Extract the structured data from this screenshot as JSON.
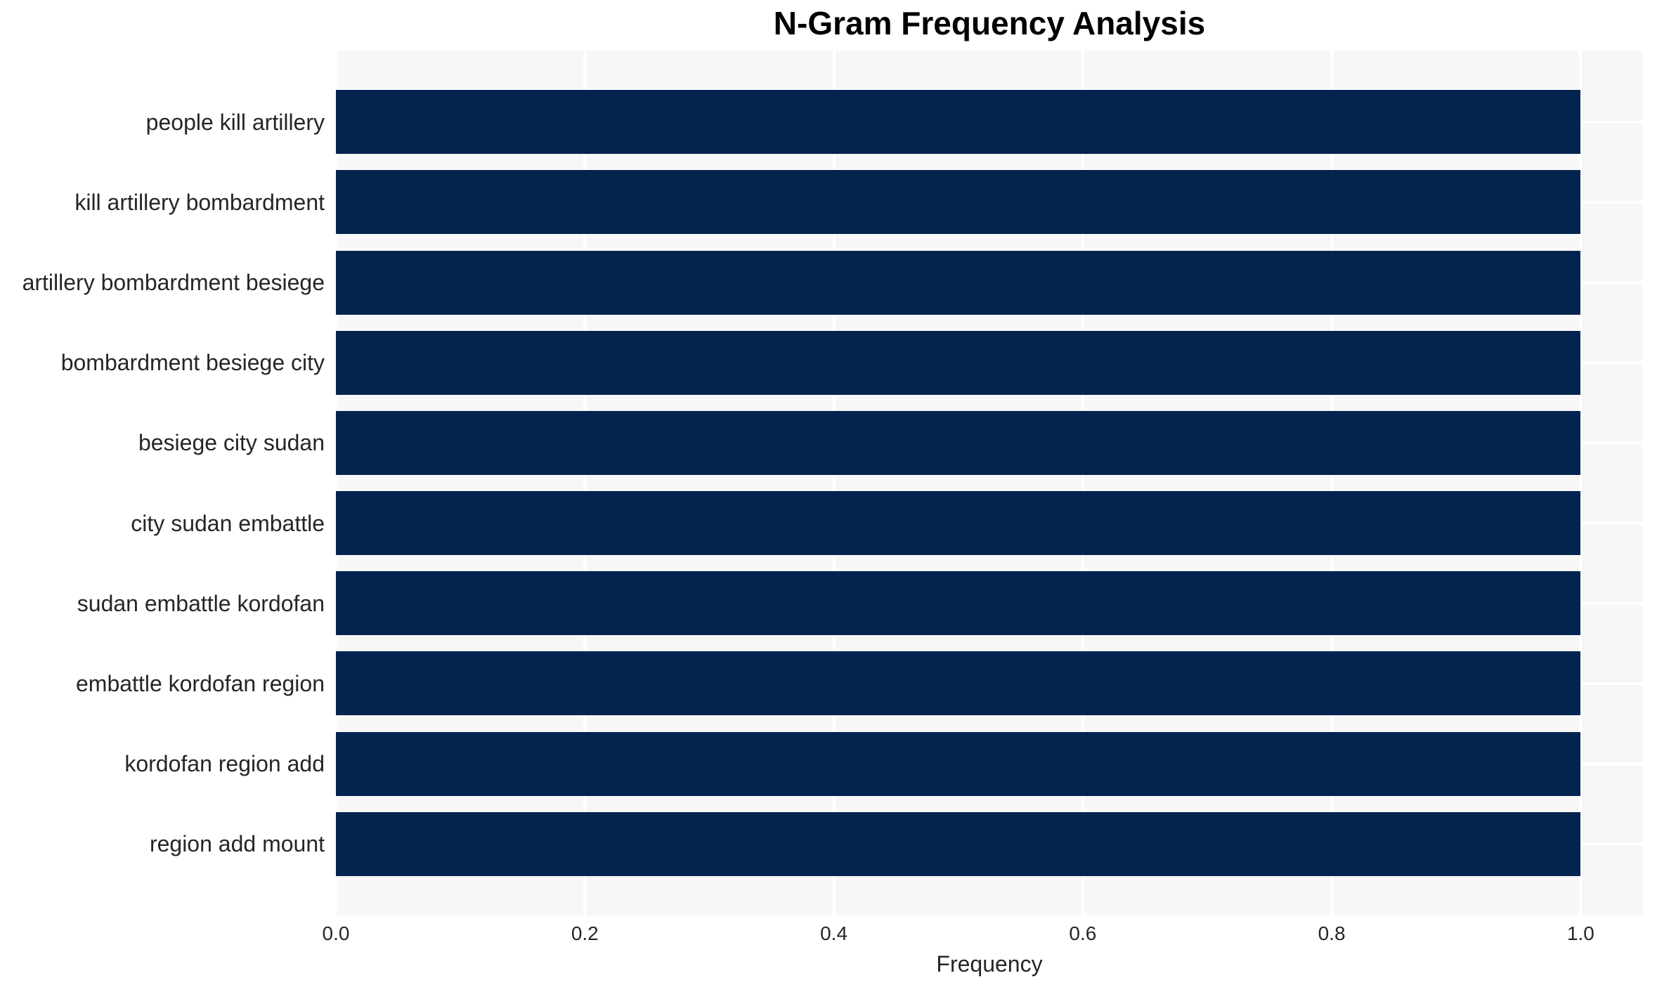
{
  "chart_data": {
    "type": "bar",
    "orientation": "horizontal",
    "title": "N-Gram Frequency Analysis",
    "xlabel": "Frequency",
    "ylabel": "",
    "categories": [
      "people kill artillery",
      "kill artillery bombardment",
      "artillery bombardment besiege",
      "bombardment besiege city",
      "besiege city sudan",
      "city sudan embattle",
      "sudan embattle kordofan",
      "embattle kordofan region",
      "kordofan region add",
      "region add mount"
    ],
    "values": [
      1.0,
      1.0,
      1.0,
      1.0,
      1.0,
      1.0,
      1.0,
      1.0,
      1.0,
      1.0
    ],
    "xlim": [
      0,
      1.05
    ],
    "x_ticks": [
      "0.0",
      "0.2",
      "0.4",
      "0.6",
      "0.8",
      "1.0"
    ],
    "x_tick_values": [
      0.0,
      0.2,
      0.4,
      0.6,
      0.8,
      1.0
    ],
    "grid": true,
    "legend": false,
    "bar_fraction": 0.8,
    "colors": {
      "bar": "#02244e",
      "plot_background": "#f7f7f7",
      "gridline": "#ffffff",
      "text": "#262626",
      "title": "#000000",
      "page_background": "#ffffff"
    }
  }
}
